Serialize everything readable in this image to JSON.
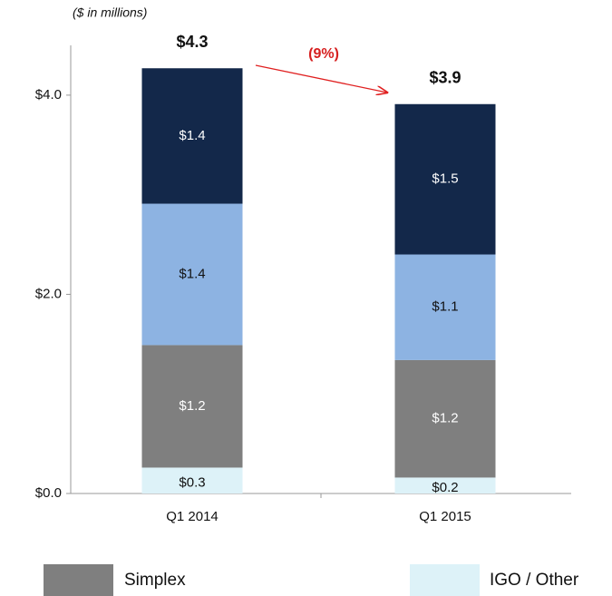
{
  "chart_data": {
    "type": "stacked_bar",
    "subtitle": "($ in millions)",
    "categories": [
      "Q1 2014",
      "Q1 2015"
    ],
    "series": [
      {
        "name": "IGO / Other",
        "color": "#ddf2f8",
        "values": [
          0.26,
          0.16
        ],
        "value_labels": [
          "$0.3",
          "$0.2"
        ]
      },
      {
        "name": "Simplex",
        "color": "#7f7f7f",
        "values": [
          1.23,
          1.18
        ],
        "value_labels": [
          "$1.2",
          "$1.2"
        ]
      },
      {
        "color": "#8db3e2",
        "values": [
          1.42,
          1.06
        ],
        "value_labels": [
          "$1.4",
          "$1.1"
        ]
      },
      {
        "color": "#13284a",
        "values": [
          1.36,
          1.51
        ],
        "value_labels": [
          "$1.4",
          "$1.5"
        ]
      }
    ],
    "totals": {
      "values": [
        4.3,
        3.9
      ],
      "value_labels": [
        "$4.3",
        "$3.9"
      ]
    },
    "change_label": "(9%)",
    "ylim": [
      0,
      4.5
    ],
    "yticks": [
      {
        "value": 0,
        "label": "$0.0"
      },
      {
        "value": 2,
        "label": "$2.0"
      },
      {
        "value": 4,
        "label": "$4.0"
      }
    ]
  }
}
